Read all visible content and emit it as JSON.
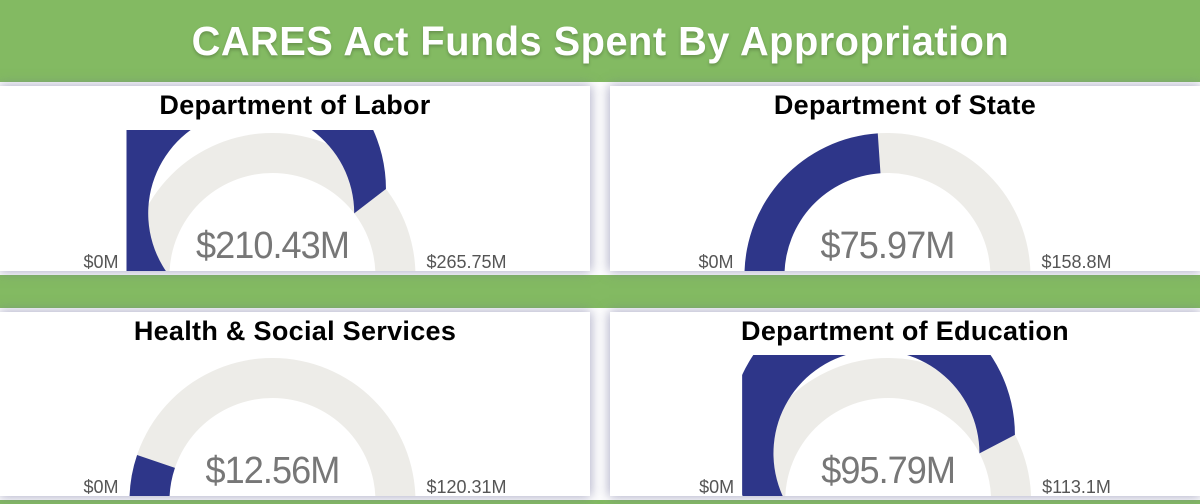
{
  "header": {
    "title": "CARES Act Funds Spent By Appropriation"
  },
  "colors": {
    "banner_green": "#83BA62",
    "gauge_fill_blue": "#2E3689",
    "gauge_track_gray": "#EDECE8",
    "value_text_gray": "#777777",
    "minmax_text_gray": "#555555",
    "title_text_black": "#000000"
  },
  "chart_data": [
    {
      "type": "gauge",
      "title": "Department of Labor",
      "value": 210.43,
      "min": 0,
      "max": 265.75,
      "value_label": "$210.43M",
      "min_label": "$0M",
      "max_label": "$265.75M"
    },
    {
      "type": "gauge",
      "title": "Department of State",
      "value": 75.97,
      "min": 0,
      "max": 158.8,
      "value_label": "$75.97M",
      "min_label": "$0M",
      "max_label": "$158.8M"
    },
    {
      "type": "gauge",
      "title": "Health & Social Services",
      "value": 12.56,
      "min": 0,
      "max": 120.31,
      "value_label": "$12.56M",
      "min_label": "$0M",
      "max_label": "$120.31M"
    },
    {
      "type": "gauge",
      "title": "Department of Education",
      "value": 95.79,
      "min": 0,
      "max": 113.1,
      "value_label": "$95.79M",
      "min_label": "$0M",
      "max_label": "$113.1M"
    }
  ]
}
